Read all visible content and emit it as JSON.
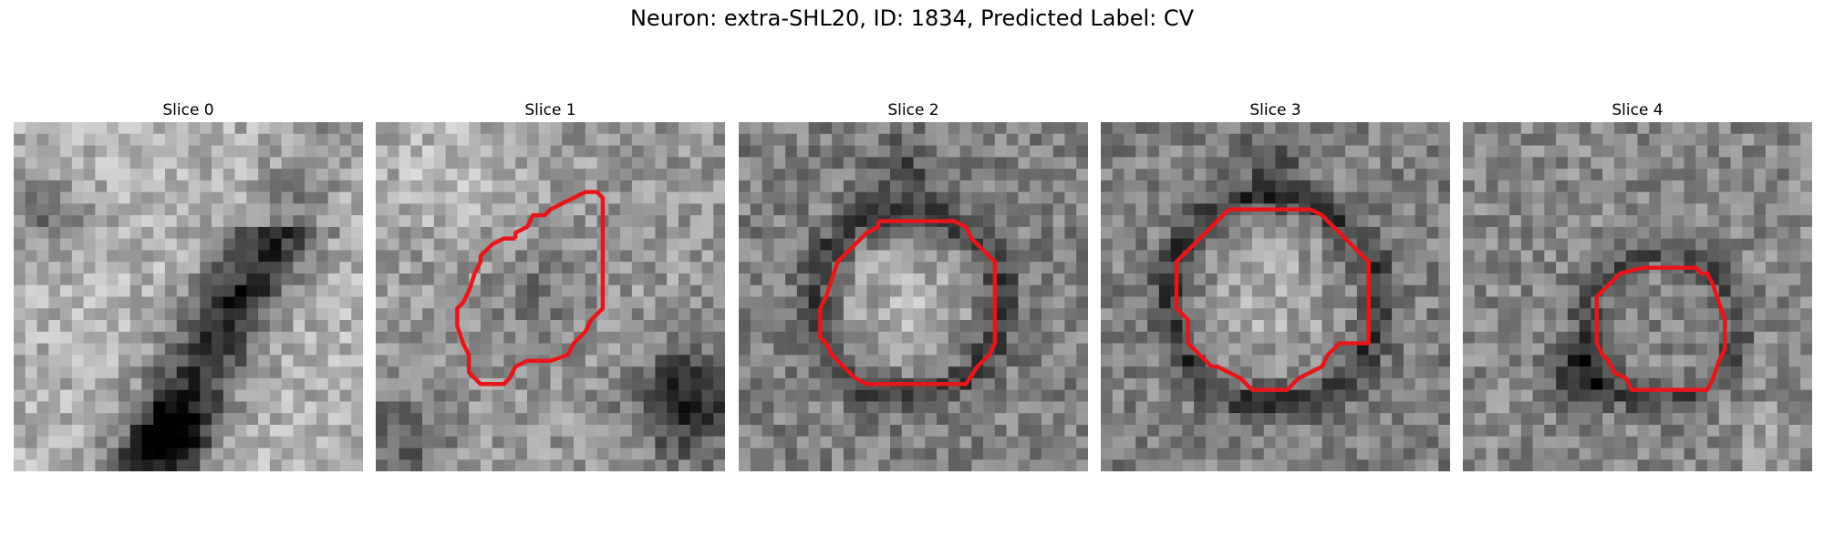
{
  "figure": {
    "title": "Neuron: extra-SHL20, ID: 1834, Predicted Label: CV",
    "contour_color": "#e8161b"
  },
  "slices": [
    {
      "title": "Slice 0"
    },
    {
      "title": "Slice 1"
    },
    {
      "title": "Slice 2"
    },
    {
      "title": "Slice 3"
    },
    {
      "title": "Slice 4"
    }
  ]
}
